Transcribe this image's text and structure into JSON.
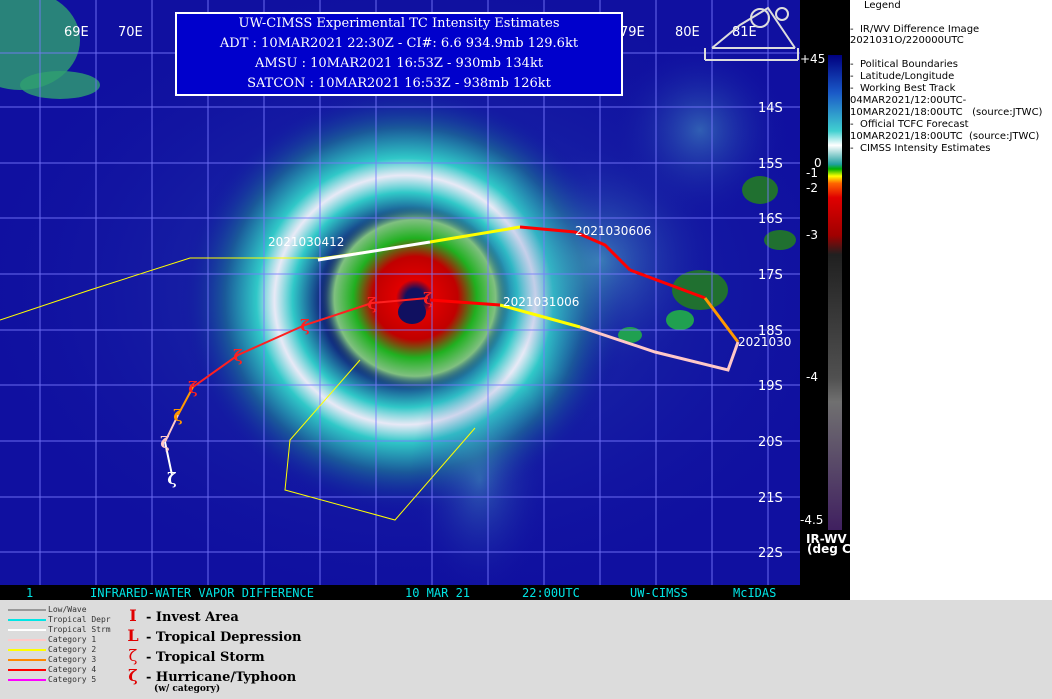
{
  "header": {
    "title": "UW-CIMSS Experimental TC Intensity Estimates",
    "adt": "ADT : 10MAR2021 22:30Z -  CI#: 6.6  934.9mb  129.6kt",
    "amsu": "AMSU : 10MAR2021 16:53Z -  930mb  134kt",
    "satcon": "SATCON : 10MAR2021 16:53Z -  938mb  126kt"
  },
  "lon_labels": [
    "69E",
    "70E",
    "79E",
    "80E",
    "81E"
  ],
  "lat_labels": [
    "14S",
    "15S",
    "16S",
    "17S",
    "18S",
    "19S",
    "20S",
    "21S",
    "22S"
  ],
  "track_labels": [
    "2021030412",
    "2021030606",
    "2021031006",
    "2021030"
  ],
  "footer": {
    "frame": "1",
    "product": "INFRARED-WATER VAPOR DIFFERENCE",
    "date": "10 MAR 21",
    "time": "22:00UTC",
    "source": "UW-CIMSS",
    "system": "McIDAS"
  },
  "colorbar": {
    "top": "+45",
    "ticks": [
      "0",
      "-1",
      "-2",
      "-3",
      "-4",
      "-4.5"
    ],
    "unit1": "IR-WV",
    "unit2": "(deg C)"
  },
  "legend": {
    "title": "Legend",
    "lines": [
      "-  IR/WV Difference Image",
      "2021031O/220000UTC",
      "-  Political Boundaries",
      "-  Latitude/Longitude",
      "-  Working Best Track",
      "04MAR2021/12:00UTC-",
      "10MAR2021/18:00UTC   (source:JTWC)",
      "-  Official TCFC Forecast",
      "10MAR2021/18:00UTC  (source:JTWC)",
      "-  CIMSS Intensity Estimates"
    ]
  },
  "track_key": [
    {
      "label": "Low/Wave",
      "color": "#999999"
    },
    {
      "label": "Tropical Depr",
      "color": "#00e5e5"
    },
    {
      "label": "Tropical Strm",
      "color": "#ffffff"
    },
    {
      "label": "Category 1",
      "color": "#ffc8c8"
    },
    {
      "label": "Category 2",
      "color": "#ffff00"
    },
    {
      "label": "Category 3",
      "color": "#ff8800"
    },
    {
      "label": "Category 4",
      "color": "#ff0000"
    },
    {
      "label": "Category 5",
      "color": "#ff00ff"
    }
  ],
  "symbol_key": [
    {
      "symbol": "I",
      "label": "- Invest Area"
    },
    {
      "symbol": "L",
      "label": "- Tropical Depression"
    },
    {
      "symbol": "ζ",
      "label": "- Tropical Storm"
    },
    {
      "symbol": "ζ",
      "label": "- Hurricane/Typhoon"
    }
  ],
  "symbol_note": "(w/ category)",
  "colors": {
    "ocean": "#1010a0",
    "grid": "#7a7aff",
    "accent_red": "#e00000",
    "footer_cyan": "#00e5e5"
  }
}
